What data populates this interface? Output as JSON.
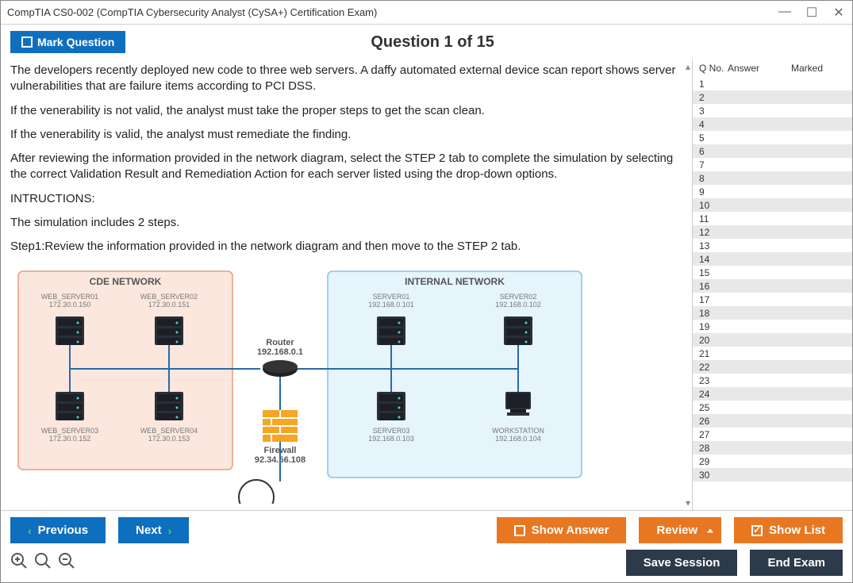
{
  "window": {
    "title": "CompTIA CS0-002 (CompTIA Cybersecurity Analyst (CySA+) Certification Exam)"
  },
  "header": {
    "mark_label": "Mark Question",
    "question_title": "Question 1 of 15"
  },
  "question": {
    "paragraphs": [
      "The developers recently deployed new code to three web servers. A daffy automated external device scan report shows server vulnerabilities that are failure items according to PCI DSS.",
      "If the venerability is not valid, the analyst must take the proper steps to get the scan clean.",
      "If the venerability is valid, the analyst must remediate the finding.",
      "After reviewing the information provided in the network diagram, select the STEP 2 tab to complete the simulation by selecting the correct Validation Result and Remediation Action for each server listed using the drop-down options.",
      "INTRUCTIONS:",
      "The simulation includes 2 steps.",
      "Step1:Review the information provided in the network diagram and then move to the STEP 2 tab."
    ]
  },
  "diagram": {
    "cde_title": "CDE NETWORK",
    "internal_title": "INTERNAL NETWORK",
    "cde_bg": "#fce7df",
    "cde_border": "#e99a7a",
    "internal_bg": "#e6f4fb",
    "internal_border": "#7ec6e6",
    "label_color": "#777777",
    "cde_nodes": [
      {
        "name": "WEB_SERVER01",
        "ip": "172.30.0.150"
      },
      {
        "name": "WEB_SERVER02",
        "ip": "172.30.0.151"
      },
      {
        "name": "WEB_SERVER03",
        "ip": "172.30.0.152"
      },
      {
        "name": "WEB_SERVER04",
        "ip": "172.30.0.153"
      }
    ],
    "internal_nodes": [
      {
        "name": "SERVER01",
        "ip": "192.168.0.101"
      },
      {
        "name": "SERVER02",
        "ip": "192.168.0.102"
      },
      {
        "name": "SERVER03",
        "ip": "192.168.0.103"
      },
      {
        "name": "WORKSTATION",
        "ip": "192.168.0.104"
      }
    ],
    "router": {
      "label": "Router",
      "ip": "192.168.0.1"
    },
    "firewall": {
      "label": "Firewall",
      "ip": "92.34.56.108",
      "color": "#f5a623"
    }
  },
  "sidebar": {
    "header_qno": "Q No.",
    "header_answer": "Answer",
    "header_marked": "Marked",
    "total_rows": 30
  },
  "footer": {
    "previous": "Previous",
    "next": "Next",
    "show_answer": "Show Answer",
    "review": "Review",
    "show_list": "Show List",
    "save_session": "Save Session",
    "end_exam": "End Exam"
  },
  "colors": {
    "blue_btn": "#0f6fbf",
    "orange_btn": "#e87722",
    "dark_btn": "#2d3a4a",
    "chevron_green": "#6fcf3f"
  }
}
